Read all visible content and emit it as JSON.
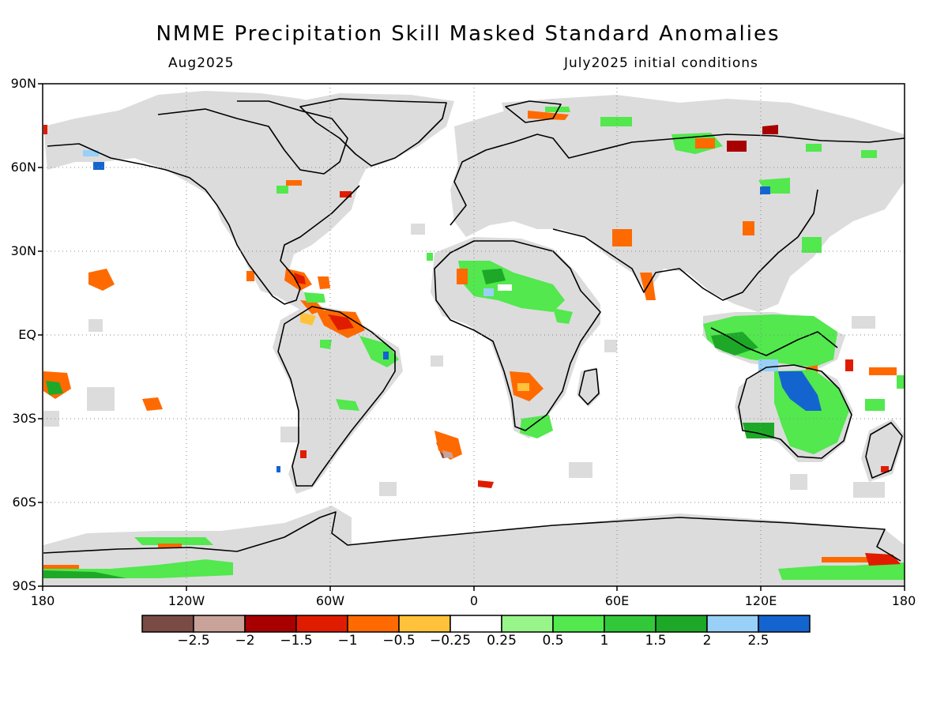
{
  "title": "NMME Precipitation Skill Masked Standard Anomalies",
  "subtitle_left": "Aug2025",
  "subtitle_right": "July2025 initial conditions",
  "lat_labels": [
    "90N",
    "60N",
    "30N",
    "EQ",
    "30S",
    "60S",
    "90S"
  ],
  "lon_labels": [
    "180",
    "120W",
    "60W",
    "0",
    "60E",
    "120E",
    "180"
  ],
  "colorbar": {
    "colors": [
      "#7a4b44",
      "#c9a39a",
      "#a80000",
      "#e01c00",
      "#ff6a00",
      "#ffc23a",
      "#ffffff",
      "#97f58a",
      "#52e84e",
      "#32c83a",
      "#1ea828",
      "#98d0f8",
      "#1464d0"
    ],
    "labels": [
      "−2.5",
      "−2",
      "−1.5",
      "−1",
      "−0.5",
      "−0.25",
      "0.25",
      "0.5",
      "1",
      "1.5",
      "2",
      "2.5"
    ]
  }
}
